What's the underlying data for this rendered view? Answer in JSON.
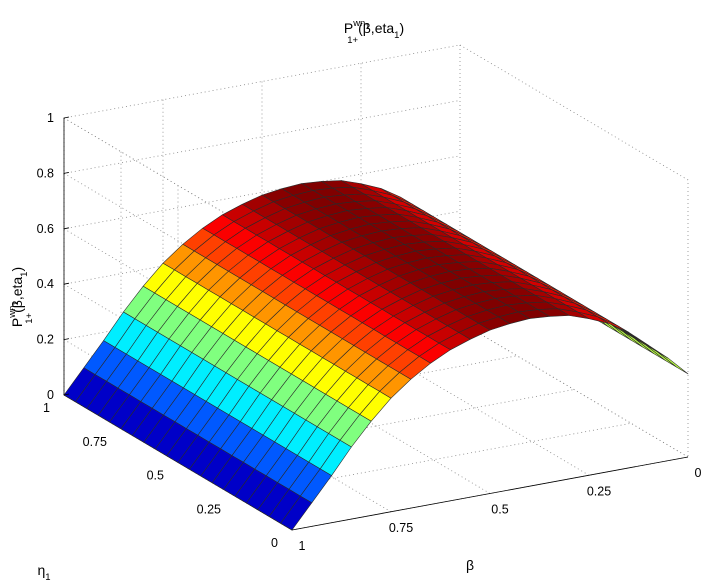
{
  "chart_data": {
    "type": "surface",
    "colormap": "jet",
    "grid": true,
    "view": "3d",
    "title": {
      "base": "P",
      "sup": "wn",
      "sup2": "1",
      "sub": "1+",
      "tail": "(β,eta",
      "tailsub": "1",
      "close": ")"
    },
    "zlabel": {
      "base": "P",
      "sup": "wn",
      "sup2": "1",
      "sub": "1+",
      "tail": "(β,eta",
      "tailsub": "1",
      "close": ")"
    },
    "xlabel": "β",
    "ylabel": {
      "base": "η",
      "sub": "1"
    },
    "x_ticks": [
      "0",
      "0.25",
      "0.5",
      "0.75",
      "1"
    ],
    "y_ticks": [
      "0",
      "0.25",
      "0.5",
      "0.75",
      "1"
    ],
    "z_ticks": [
      "0",
      "0.2",
      "0.4",
      "0.6",
      "0.8",
      "1"
    ],
    "xlim": [
      0,
      1
    ],
    "ylim": [
      0,
      1
    ],
    "zlim": [
      0,
      1
    ],
    "clim": [
      0,
      0.6
    ],
    "mesh": {
      "x_steps": 20,
      "y_steps": 20
    },
    "x": [
      0,
      0.05,
      0.1,
      0.15,
      0.2,
      0.25,
      0.3,
      0.35,
      0.4,
      0.45,
      0.5,
      0.55,
      0.6,
      0.65,
      0.7,
      0.75,
      0.8,
      0.85,
      0.9,
      0.95,
      1
    ],
    "z_profile_vs_beta": [
      0.3,
      0.37,
      0.43,
      0.49,
      0.535,
      0.565,
      0.59,
      0.6,
      0.605,
      0.6,
      0.59,
      0.57,
      0.545,
      0.51,
      0.465,
      0.41,
      0.34,
      0.26,
      0.17,
      0.085,
      0
    ],
    "z_vs_eta1": "constant (no dependence on eta_1)"
  }
}
